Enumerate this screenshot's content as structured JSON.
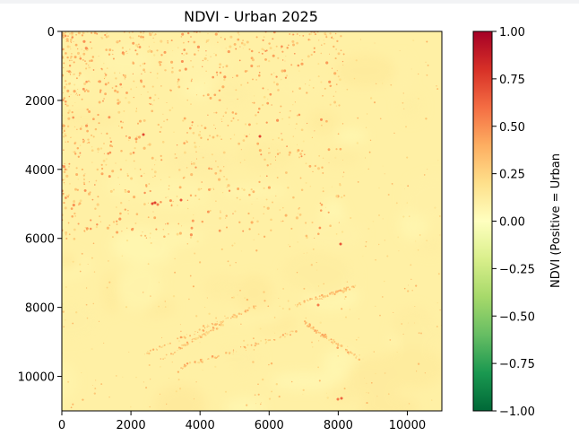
{
  "chart_data": {
    "type": "heatmap",
    "title": "NDVI - Urban 2025",
    "xlabel": "",
    "ylabel": "",
    "x_range": [
      0,
      11000
    ],
    "y_range": [
      11000,
      0
    ],
    "x_ticks": [
      0,
      2000,
      4000,
      6000,
      8000,
      10000
    ],
    "y_ticks": [
      0,
      2000,
      4000,
      6000,
      8000,
      10000
    ],
    "grid": false,
    "colormap": {
      "name": "RdYlGn_r",
      "label": "NDVI (Positive = Urban",
      "range": [
        -1.0,
        1.0
      ],
      "ticks": [
        "1.00",
        "0.75",
        "0.50",
        "0.25",
        "0.00",
        "−0.25",
        "−0.50",
        "−0.75",
        "−1.00"
      ],
      "colors": [
        "#006837",
        "#1a9850",
        "#66bd63",
        "#a6d96a",
        "#d9ef8b",
        "#ffffbf",
        "#fee08b",
        "#fdae61",
        "#f46d43",
        "#d73027",
        "#a50026"
      ]
    },
    "background_value": 0.1
  }
}
